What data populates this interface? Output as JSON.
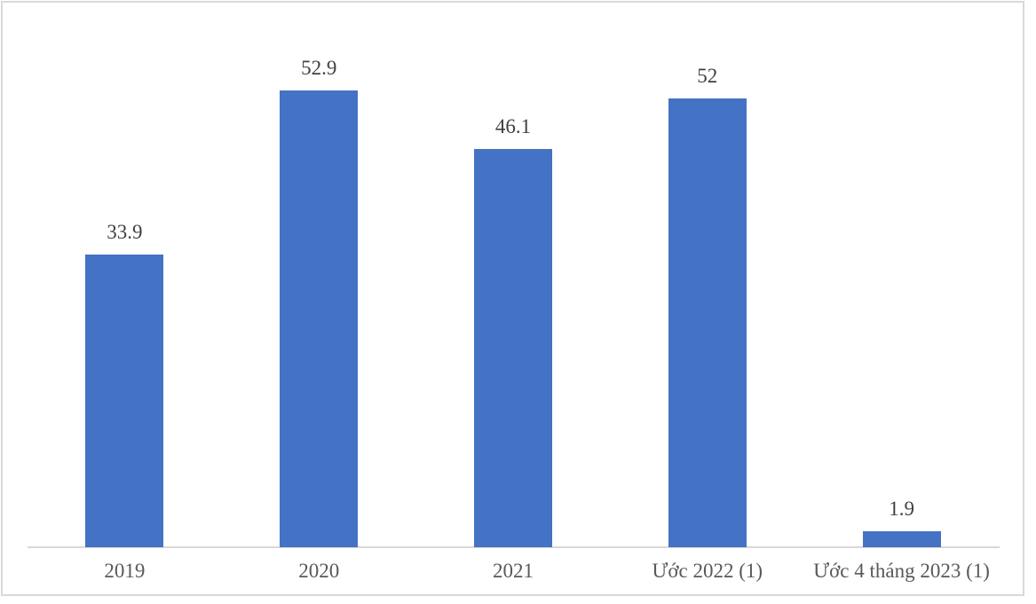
{
  "chart_data": {
    "type": "bar",
    "categories": [
      "2019",
      "2020",
      "2021",
      "Ước 2022 (1)",
      "Ước 4 tháng 2023 (1)"
    ],
    "values": [
      33.9,
      52.9,
      46.1,
      52,
      1.9
    ],
    "value_labels": [
      "33.9",
      "52.9",
      "46.1",
      "52",
      "1.9"
    ],
    "title": "",
    "xlabel": "",
    "ylabel": "",
    "ylim": [
      0,
      60
    ],
    "grid": false,
    "legend": "none",
    "data_labels": "outside-end",
    "colors": {
      "bar": "#4472C4",
      "axis_line": "#D9D9D9",
      "frame_border": "#D9D9D9",
      "value_label_text": "#404040",
      "tick_label_text": "#595959",
      "background": "#FFFFFF"
    }
  }
}
